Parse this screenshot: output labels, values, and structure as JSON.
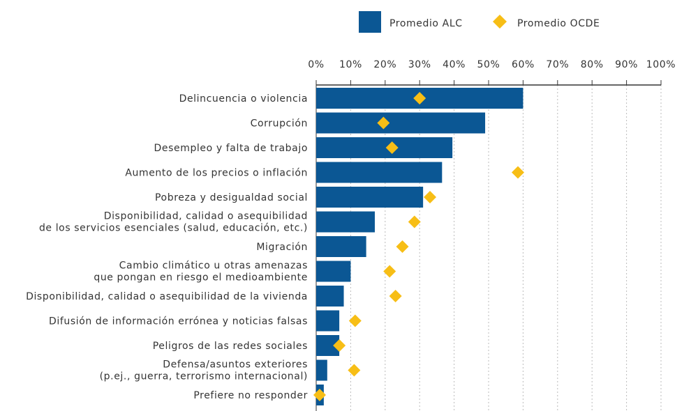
{
  "chart_data": {
    "type": "bar",
    "orientation": "horizontal",
    "categories": [
      [
        "Delincuencia o violencia"
      ],
      [
        "Corrupción"
      ],
      [
        "Desempleo y falta de trabajo"
      ],
      [
        "Aumento de los precios o inflación"
      ],
      [
        "Pobreza y desigualdad social"
      ],
      [
        "Disponibilidad, calidad o asequibilidad",
        "de los servicios esenciales (salud, educación, etc.)"
      ],
      [
        "Migración"
      ],
      [
        "Cambio climático u otras amenazas",
        "que pongan en riesgo el medioambiente"
      ],
      [
        "Disponibilidad, calidad o asequibilidad de la vivienda"
      ],
      [
        "Difusión de información errónea y noticias falsas"
      ],
      [
        "Peligros de las redes sociales"
      ],
      [
        "Defensa/asuntos exteriores",
        "(p.ej., guerra, terrorismo internacional)"
      ],
      [
        "Prefiere no responder"
      ]
    ],
    "series": [
      {
        "name": "Promedio ALC",
        "mark": "bar",
        "color": "#0b5794",
        "values": [
          60,
          49,
          39.5,
          36.5,
          31,
          17,
          14.5,
          10,
          8,
          6.7,
          6.7,
          3.2,
          2.2
        ]
      },
      {
        "name": "Promedio OCDE",
        "mark": "diamond",
        "color": "#f7be16",
        "values": [
          30,
          19.5,
          22,
          58.5,
          33,
          28.5,
          25,
          21.3,
          23,
          11.3,
          6.7,
          11,
          1
        ]
      }
    ],
    "xlim": [
      0,
      100
    ],
    "x_ticks": [
      "0%",
      "10%",
      "20%",
      "30%",
      "40%",
      "50%",
      "60%",
      "70%",
      "80%",
      "90%",
      "100%"
    ],
    "x_axis_position": "top",
    "grid": "vertical dotted",
    "legend_position": "top"
  }
}
